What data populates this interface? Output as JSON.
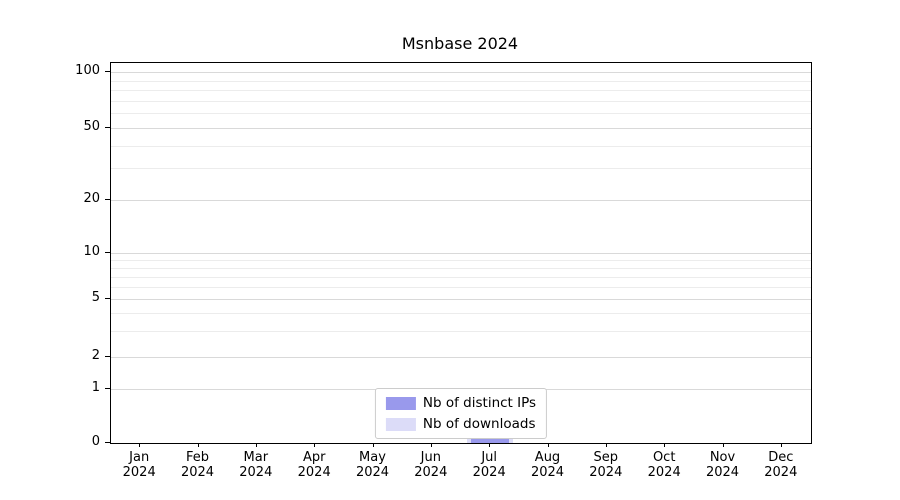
{
  "chart_data": {
    "type": "bar",
    "title": "Msnbase 2024",
    "x_categories": [
      {
        "month": "Jan",
        "year": "2024"
      },
      {
        "month": "Feb",
        "year": "2024"
      },
      {
        "month": "Mar",
        "year": "2024"
      },
      {
        "month": "Apr",
        "year": "2024"
      },
      {
        "month": "May",
        "year": "2024"
      },
      {
        "month": "Jun",
        "year": "2024"
      },
      {
        "month": "Jul",
        "year": "2024"
      },
      {
        "month": "Aug",
        "year": "2024"
      },
      {
        "month": "Sep",
        "year": "2024"
      },
      {
        "month": "Oct",
        "year": "2024"
      },
      {
        "month": "Nov",
        "year": "2024"
      },
      {
        "month": "Dec",
        "year": "2024"
      }
    ],
    "series": [
      {
        "name": "Nb of distinct IPs",
        "color": "#9999ec",
        "values": [
          0,
          0,
          0,
          0,
          0,
          0,
          1,
          0,
          0,
          0,
          0,
          0
        ]
      },
      {
        "name": "Nb of downloads",
        "color": "#dcdcf8",
        "values": [
          0,
          0,
          0,
          0,
          0,
          0,
          1,
          0,
          0,
          0,
          0,
          0
        ]
      }
    ],
    "yticks": [
      0,
      1,
      2,
      5,
      10,
      20,
      50,
      100
    ],
    "minor_ticks": [
      3,
      4,
      6,
      7,
      8,
      9,
      30,
      40,
      60,
      70,
      80,
      90
    ],
    "ylim": [
      0,
      100
    ],
    "yscale": "symlog",
    "grid": "horizontal",
    "legend_position": "lower center"
  },
  "colors": {
    "grid_major": "#d9d9d9",
    "grid_minor": "#ececec",
    "axis": "#000000",
    "background": "#ffffff"
  }
}
